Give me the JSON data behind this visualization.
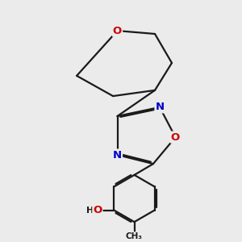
{
  "background_color": "#ebebeb",
  "bond_color": "#1a1a1a",
  "bond_width": 1.6,
  "atom_colors": {
    "O": "#cc0000",
    "N": "#0000cc",
    "C": "#1a1a1a",
    "H": "#1a1a1a"
  },
  "font_size": 9.5,
  "dbo": 0.042
}
